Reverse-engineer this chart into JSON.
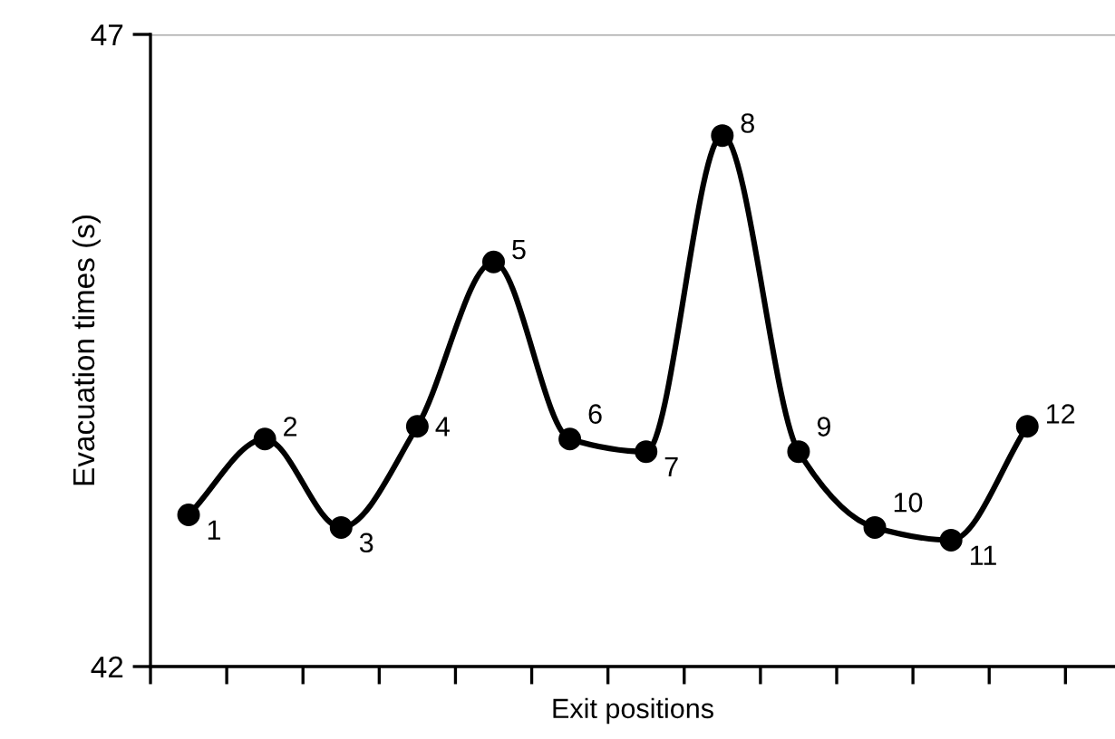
{
  "chart_data": {
    "type": "line",
    "xlabel": "Exit positions",
    "ylabel": "Evacuation times (s)",
    "categories": [
      null,
      null,
      null,
      null,
      null,
      null,
      null,
      null,
      null,
      null,
      null,
      null
    ],
    "series": [
      {
        "color": "#000000",
        "values": [
          43.2,
          43.8,
          43.1,
          43.9,
          45.2,
          43.8,
          43.7,
          46.2,
          43.7,
          43.1,
          43.0,
          43.9
        ]
      }
    ],
    "annotations": [
      "1",
      "2",
      "3",
      "4",
      "5",
      "6",
      "7",
      "8",
      "9",
      "10",
      "11",
      "12"
    ],
    "ylim": [
      42,
      47
    ],
    "yticks": [
      42,
      47
    ],
    "grid": "y",
    "marker": "circle",
    "line_style": "solid"
  }
}
